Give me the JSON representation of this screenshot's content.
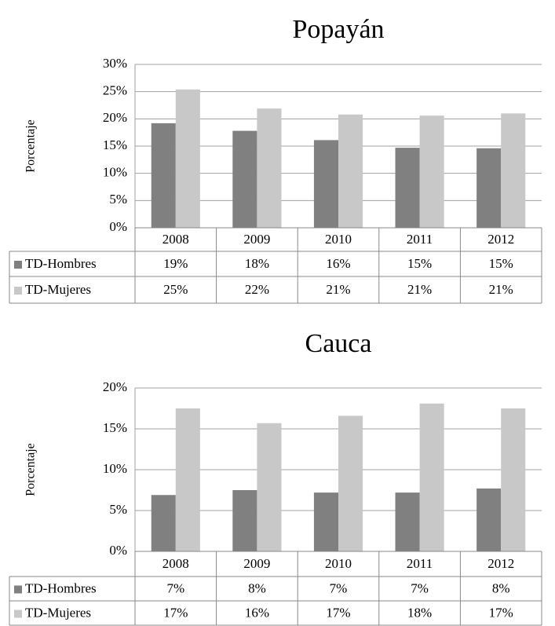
{
  "chart_data": [
    {
      "type": "bar",
      "title": "Popayán",
      "y_label": "Porcentaje",
      "categories": [
        "2008",
        "2009",
        "2010",
        "2011",
        "2012"
      ],
      "series": [
        {
          "name": "TD-Hombres",
          "color": "#808080",
          "values": [
            19.2,
            17.8,
            16.1,
            14.7,
            14.6
          ],
          "value_labels": [
            "19%",
            "18%",
            "16%",
            "15%",
            "15%"
          ]
        },
        {
          "name": "TD-Mujeres",
          "color": "#c8c8c8",
          "values": [
            25.4,
            21.9,
            20.8,
            20.6,
            21.0
          ],
          "value_labels": [
            "25%",
            "22%",
            "21%",
            "21%",
            "21%"
          ]
        }
      ],
      "ylim": [
        0,
        30
      ],
      "yticks": [
        {
          "value": 0,
          "label": "0%"
        },
        {
          "value": 5,
          "label": "5%"
        },
        {
          "value": 10,
          "label": "10%"
        },
        {
          "value": 15,
          "label": "15%"
        },
        {
          "value": 20,
          "label": "20%"
        },
        {
          "value": 25,
          "label": "25%"
        },
        {
          "value": 30,
          "label": "30%"
        }
      ],
      "grid": true
    },
    {
      "type": "bar",
      "title": "Cauca",
      "y_label": "Porcentaje",
      "categories": [
        "2008",
        "2009",
        "2010",
        "2011",
        "2012"
      ],
      "series": [
        {
          "name": "TD-Hombres",
          "color": "#808080",
          "values": [
            6.9,
            7.5,
            7.2,
            7.2,
            7.7
          ],
          "value_labels": [
            "7%",
            "8%",
            "7%",
            "7%",
            "8%"
          ]
        },
        {
          "name": "TD-Mujeres",
          "color": "#c8c8c8",
          "values": [
            17.5,
            15.7,
            16.6,
            18.1,
            17.5
          ],
          "value_labels": [
            "17%",
            "16%",
            "17%",
            "18%",
            "17%"
          ]
        }
      ],
      "ylim": [
        0,
        20
      ],
      "yticks": [
        {
          "value": 0,
          "label": "0%"
        },
        {
          "value": 5,
          "label": "5%"
        },
        {
          "value": 10,
          "label": "10%"
        },
        {
          "value": 15,
          "label": "15%"
        },
        {
          "value": 20,
          "label": "20%"
        }
      ],
      "grid": true
    }
  ]
}
